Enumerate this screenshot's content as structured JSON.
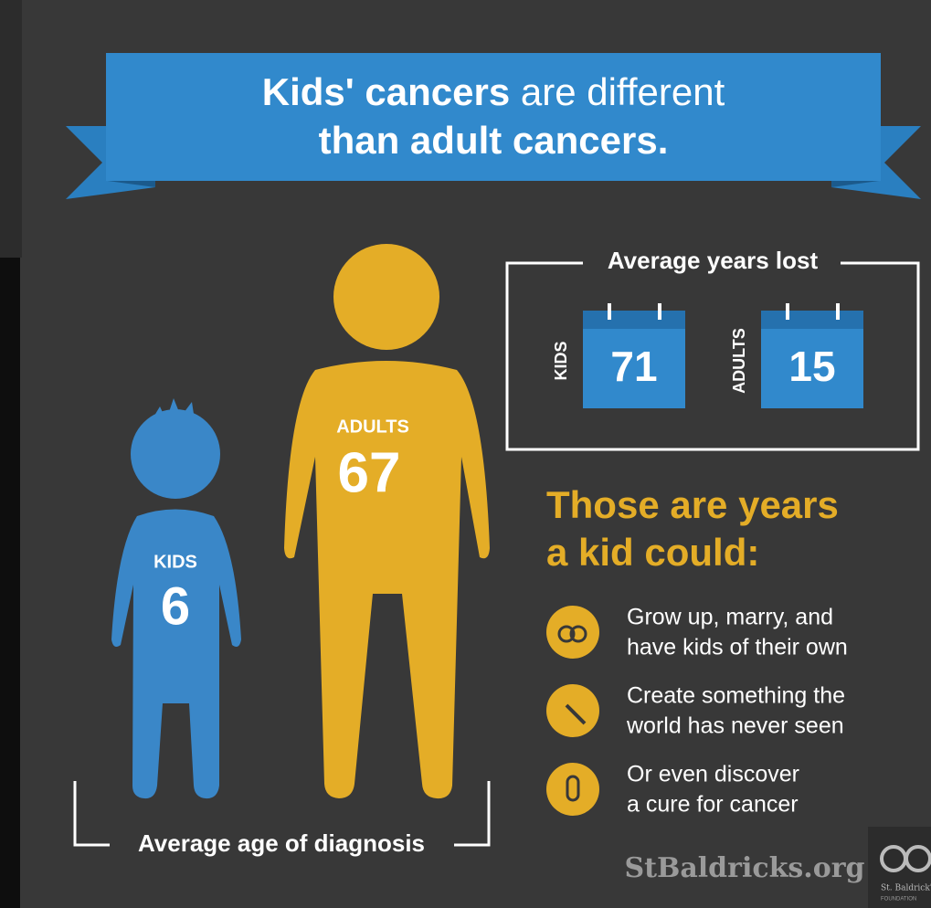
{
  "header": {
    "title_bold": "Kids' cancers",
    "title_rest": " are different",
    "title_line2": "than adult cancers."
  },
  "age": {
    "label": "Average age of diagnosis",
    "kids": {
      "label": "KIDS",
      "value": 6
    },
    "adults": {
      "label": "ADULTS",
      "value": 67
    }
  },
  "years_lost": {
    "label": "Average years lost",
    "kids": {
      "label": "KIDS",
      "value": 71
    },
    "adults": {
      "label": "ADULTS",
      "value": 15
    }
  },
  "possibilities": {
    "title_lines": [
      "Those are years",
      "a kid could:"
    ],
    "items": [
      {
        "lines": [
          "Grow up, marry, and",
          "have kids of their own"
        ]
      },
      {
        "lines": [
          "Create something the",
          "world has never seen"
        ]
      },
      {
        "lines": [
          "Or even discover",
          "a cure for cancer"
        ]
      }
    ]
  },
  "footer": {
    "site": "StBaldricks.org",
    "logo_text": "St. Baldrick's",
    "logo_sub": "FOUNDATION"
  }
}
